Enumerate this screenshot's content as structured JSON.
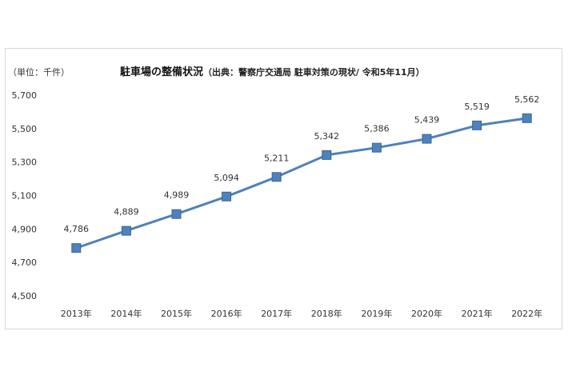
{
  "chart_data": {
    "type": "line",
    "title": "駐車場の整備状況",
    "subtitle": "（出典：警察庁交通局 駐車対策の現状/ 令和5年11月）",
    "unit_label": "（単位：千件）",
    "categories": [
      "2013年",
      "2014年",
      "2015年",
      "2016年",
      "2017年",
      "2018年",
      "2019年",
      "2020年",
      "2021年",
      "2022年"
    ],
    "values": [
      4786,
      4889,
      4989,
      5094,
      5211,
      5342,
      5386,
      5439,
      5519,
      5562
    ],
    "data_labels": [
      "4,786",
      "4,889",
      "4,989",
      "5,094",
      "5,211",
      "5,342",
      "5,386",
      "5,439",
      "5,519",
      "5,562"
    ],
    "ylim": [
      4500,
      5700
    ],
    "yticks": [
      4500,
      4700,
      4900,
      5100,
      5300,
      5500,
      5700
    ],
    "ytick_labels": [
      "4,500",
      "4,700",
      "4,900",
      "5,100",
      "5,300",
      "5,500",
      "5,700"
    ],
    "grid": false,
    "legend": "none",
    "colors": {
      "line": "#4f81bd",
      "marker": "#4f81bd",
      "marker_edge": "#3a6699"
    }
  }
}
